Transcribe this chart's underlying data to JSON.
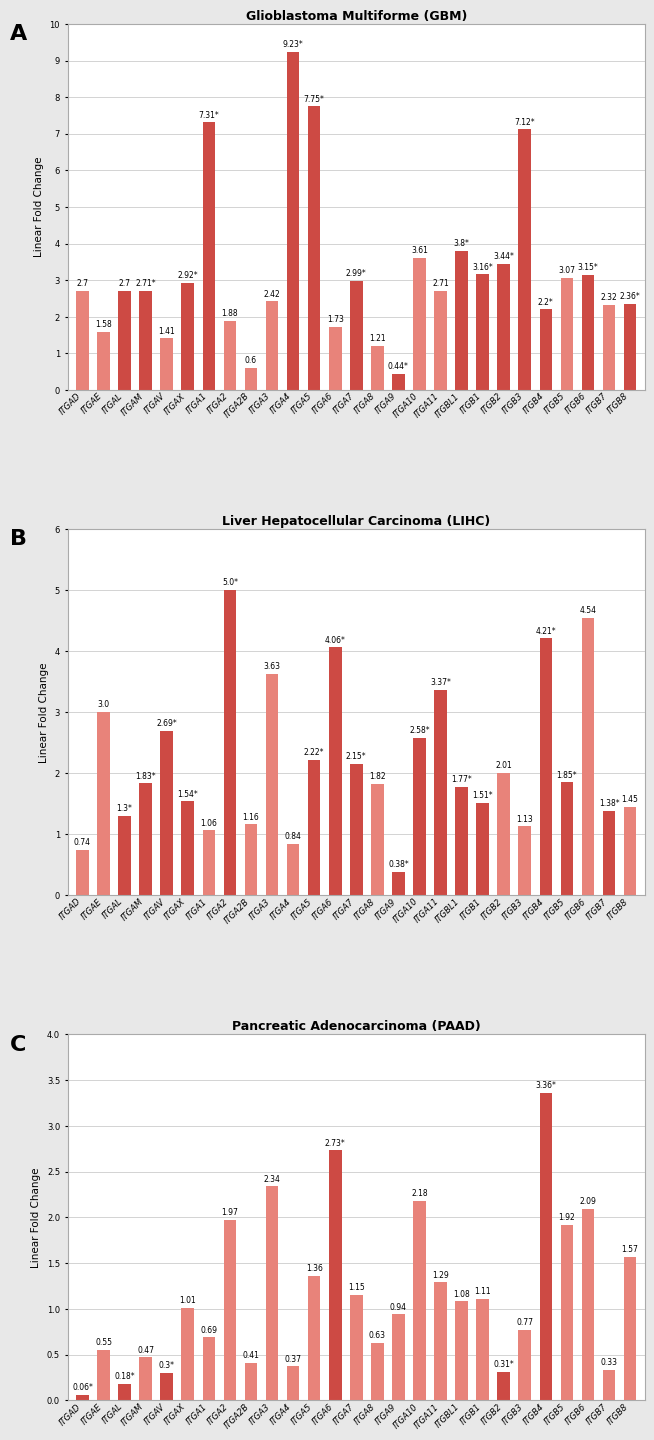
{
  "panels": [
    {
      "label": "A",
      "title": "Glioblastoma Multiforme (GBM)",
      "ylim": [
        0,
        10
      ],
      "yticks": [
        0,
        1,
        2,
        3,
        4,
        5,
        6,
        7,
        8,
        9,
        10
      ],
      "ylabel": "Linear Fold Change",
      "categories": [
        "ITGAD",
        "ITGAE",
        "ITGAL",
        "ITGAM",
        "ITGAV",
        "ITGAX",
        "ITGA1",
        "ITGA2",
        "ITGA2B",
        "ITGA3",
        "ITGA4",
        "ITGA5",
        "ITGA6",
        "ITGA7",
        "ITGA8",
        "ITGA9",
        "ITGA10",
        "ITGA11",
        "ITGBL1",
        "ITGB1",
        "ITGB2",
        "ITGB3",
        "ITGB4",
        "ITGB5",
        "ITGB6",
        "ITGB7",
        "ITGB8"
      ],
      "values": [
        2.7,
        1.58,
        2.7,
        2.71,
        1.41,
        2.92,
        7.31,
        1.88,
        0.6,
        2.42,
        9.23,
        7.75,
        1.73,
        2.99,
        1.21,
        0.44,
        3.61,
        2.71,
        3.8,
        3.16,
        3.44,
        7.12,
        2.2,
        3.07,
        3.15,
        2.32,
        2.36
      ],
      "starred": [
        false,
        false,
        false,
        true,
        false,
        true,
        true,
        false,
        false,
        false,
        true,
        true,
        false,
        true,
        false,
        true,
        false,
        false,
        true,
        true,
        true,
        true,
        true,
        false,
        true,
        false,
        true
      ],
      "colors": [
        "#e8837a",
        "#e8837a",
        "#cd4a44",
        "#cd4a44",
        "#e8837a",
        "#cd4a44",
        "#cd4a44",
        "#e8837a",
        "#e8837a",
        "#e8837a",
        "#cd4a44",
        "#cd4a44",
        "#e8837a",
        "#cd4a44",
        "#e8837a",
        "#cd4a44",
        "#e8837a",
        "#e8837a",
        "#cd4a44",
        "#cd4a44",
        "#cd4a44",
        "#cd4a44",
        "#cd4a44",
        "#e8837a",
        "#cd4a44",
        "#e8837a",
        "#cd4a44"
      ]
    },
    {
      "label": "B",
      "title": "Liver Hepatocellular Carcinoma (LIHC)",
      "ylim": [
        0,
        6
      ],
      "yticks": [
        0,
        1,
        2,
        3,
        4,
        5,
        6
      ],
      "ylabel": "Linear Fold Change",
      "categories": [
        "ITGAD",
        "ITGAE",
        "ITGAL",
        "ITGAM",
        "ITGAV",
        "ITGAX",
        "ITGA1",
        "ITGA2",
        "ITGA2B",
        "ITGA3",
        "ITGA4",
        "ITGA5",
        "ITGA6",
        "ITGA7",
        "ITGA8",
        "ITGA9",
        "ITGA10",
        "ITGA11",
        "ITGBL1",
        "ITGB1",
        "ITGB2",
        "ITGB3",
        "ITGB4",
        "ITGB5",
        "ITGB6",
        "ITGB7",
        "ITGB8"
      ],
      "values": [
        0.74,
        3.0,
        1.3,
        1.83,
        2.69,
        1.54,
        1.06,
        5.0,
        1.16,
        3.63,
        0.84,
        2.22,
        4.06,
        2.15,
        1.82,
        0.38,
        2.58,
        3.37,
        1.77,
        1.51,
        2.01,
        1.13,
        4.21,
        1.85,
        4.54,
        1.38,
        1.45
      ],
      "starred": [
        false,
        false,
        true,
        true,
        true,
        true,
        false,
        true,
        false,
        false,
        false,
        true,
        true,
        true,
        false,
        true,
        true,
        true,
        true,
        true,
        false,
        false,
        true,
        true,
        false,
        true,
        false
      ],
      "colors": [
        "#e8837a",
        "#e8837a",
        "#cd4a44",
        "#cd4a44",
        "#cd4a44",
        "#cd4a44",
        "#e8837a",
        "#cd4a44",
        "#e8837a",
        "#e8837a",
        "#e8837a",
        "#cd4a44",
        "#cd4a44",
        "#cd4a44",
        "#e8837a",
        "#cd4a44",
        "#cd4a44",
        "#cd4a44",
        "#cd4a44",
        "#cd4a44",
        "#e8837a",
        "#e8837a",
        "#cd4a44",
        "#cd4a44",
        "#e8837a",
        "#cd4a44",
        "#e8837a"
      ]
    },
    {
      "label": "C",
      "title": "Pancreatic Adenocarcinoma (PAAD)",
      "ylim": [
        0,
        4
      ],
      "yticks": [
        0,
        0.5,
        1.0,
        1.5,
        2.0,
        2.5,
        3.0,
        3.5,
        4.0
      ],
      "ylabel": "Linear Fold Change",
      "categories": [
        "ITGAD",
        "ITGAE",
        "ITGAL",
        "ITGAM",
        "ITGAV",
        "ITGAX",
        "ITGA1",
        "ITGA2",
        "ITGA2B",
        "ITGA3",
        "ITGA4",
        "ITGA5",
        "ITGA6",
        "ITGA7",
        "ITGA8",
        "ITGA9",
        "ITGA10",
        "ITGA11",
        "ITGBL1",
        "ITGB1",
        "ITGB2",
        "ITGB3",
        "ITGB4",
        "ITGB5",
        "ITGB6",
        "ITGB7",
        "ITGB8"
      ],
      "values": [
        0.06,
        0.55,
        0.18,
        0.47,
        0.3,
        1.01,
        0.69,
        1.97,
        0.41,
        2.34,
        0.37,
        1.36,
        2.73,
        1.15,
        0.63,
        0.94,
        2.18,
        1.29,
        1.08,
        1.11,
        0.31,
        0.77,
        3.36,
        1.92,
        2.09,
        0.33,
        1.57
      ],
      "starred": [
        true,
        false,
        true,
        false,
        true,
        false,
        false,
        false,
        false,
        false,
        false,
        false,
        true,
        false,
        false,
        false,
        false,
        false,
        false,
        false,
        true,
        false,
        true,
        false,
        false,
        false,
        false
      ],
      "colors": [
        "#cd4a44",
        "#e8837a",
        "#cd4a44",
        "#e8837a",
        "#cd4a44",
        "#e8837a",
        "#e8837a",
        "#e8837a",
        "#e8837a",
        "#e8837a",
        "#e8837a",
        "#e8837a",
        "#cd4a44",
        "#e8837a",
        "#e8837a",
        "#e8837a",
        "#e8837a",
        "#e8837a",
        "#e8837a",
        "#e8837a",
        "#cd4a44",
        "#e8837a",
        "#cd4a44",
        "#e8837a",
        "#e8837a",
        "#e8837a",
        "#e8837a"
      ]
    }
  ],
  "outer_bg": "#e8e8e8",
  "panel_bg": "#ffffff",
  "panel_border": "#aaaaaa",
  "grid_color": "#cccccc",
  "bar_width": 0.6,
  "title_fontsize": 9,
  "tick_fontsize": 6,
  "ylabel_fontsize": 7.5,
  "value_fontsize": 5.5,
  "panel_label_fontsize": 16
}
